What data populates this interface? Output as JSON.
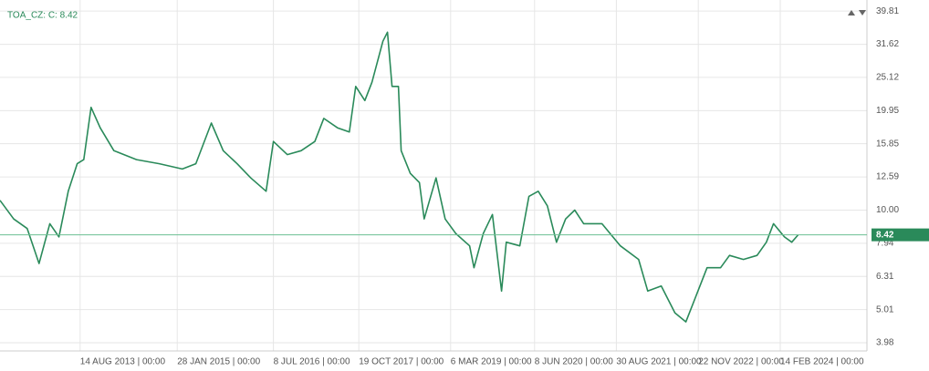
{
  "chart_data": {
    "type": "line",
    "title": "TOA_CZ: C: 8.42",
    "last_value": 8.42,
    "log_scale": true,
    "grid": true,
    "xlim": [
      "2012-06-01",
      "2025-06-03"
    ],
    "ylim": [
      3.76,
      43
    ],
    "yticks": [
      3.98,
      5.01,
      6.31,
      7.94,
      {
        "value": 10,
        "label": "10.00"
      },
      12.59,
      15.85,
      19.95,
      25.12,
      31.62,
      39.81
    ],
    "xticks": [
      {
        "value": "2013-08-14",
        "label": "14 AUG 2013 | 00:00"
      },
      {
        "value": "2015-01-28",
        "label": "28 JAN 2015 | 00:00"
      },
      {
        "value": "2016-07-08",
        "label": "8 JUL 2016 | 00:00"
      },
      {
        "value": "2017-10-19",
        "label": "19 OCT 2017 | 00:00"
      },
      {
        "value": "2019-03-06",
        "label": "6 MAR 2019 | 00:00"
      },
      {
        "value": "2020-06-08",
        "label": "8 JUN 2020 | 00:00"
      },
      {
        "value": "2021-08-30",
        "label": "30 AUG 2021 | 00:00"
      },
      {
        "value": "2022-11-22",
        "label": "22 NOV 2022 | 00:00"
      },
      {
        "value": "2024-02-14",
        "label": "14 FEB 2024 | 00:00"
      }
    ],
    "x": [
      "2012-06-01",
      "2012-08-15",
      "2012-10-28",
      "2013-01-01",
      "2013-03-01",
      "2013-04-20",
      "2013-06-10",
      "2013-07-29",
      "2013-09-03",
      "2013-10-13",
      "2013-12-02",
      "2014-02-15",
      "2014-06-19",
      "2014-10-22",
      "2015-02-25",
      "2015-05-10",
      "2015-08-03",
      "2015-10-07",
      "2015-12-22",
      "2016-03-06",
      "2016-05-29",
      "2016-07-08",
      "2016-09-22",
      "2016-12-07",
      "2017-02-20",
      "2017-04-10",
      "2017-06-24",
      "2017-08-28",
      "2017-10-02",
      "2017-11-21",
      "2017-12-30",
      "2018-02-28",
      "2018-03-25",
      "2018-04-19",
      "2018-05-24",
      "2018-06-08",
      "2018-07-28",
      "2018-09-16",
      "2018-10-12",
      "2018-12-16",
      "2019-02-04",
      "2019-04-03",
      "2019-06-18",
      "2019-07-12",
      "2019-09-01",
      "2019-10-21",
      "2019-12-10",
      "2020-01-05",
      "2020-03-19",
      "2020-05-08",
      "2020-06-28",
      "2020-08-17",
      "2020-10-06",
      "2020-11-25",
      "2021-01-14",
      "2021-03-04",
      "2021-06-12",
      "2021-09-21",
      "2021-12-30",
      "2022-02-18",
      "2022-05-03",
      "2022-07-17",
      "2022-09-15",
      "2022-11-20",
      "2023-01-09",
      "2023-03-24",
      "2023-05-12",
      "2023-07-27",
      "2023-10-10",
      "2023-11-30",
      "2024-01-08",
      "2024-03-08",
      "2024-04-17",
      "2024-05-22"
    ],
    "series": [
      {
        "name": "TOA_CZ",
        "color": "#2a8a5a",
        "values": [
          10.7,
          9.4,
          8.8,
          6.9,
          9.1,
          8.3,
          11.4,
          13.8,
          14.2,
          20.4,
          17.7,
          15.1,
          14.2,
          13.8,
          13.3,
          13.8,
          18.3,
          15.1,
          13.8,
          12.5,
          11.4,
          16.1,
          14.7,
          15.1,
          16.1,
          18.9,
          17.7,
          17.2,
          23.6,
          21.4,
          24.3,
          32.3,
          34.4,
          23.6,
          23.6,
          15.1,
          12.9,
          12.1,
          9.4,
          12.5,
          9.4,
          8.5,
          7.8,
          6.7,
          8.5,
          9.7,
          5.7,
          8.0,
          7.8,
          11.0,
          11.4,
          10.3,
          8.0,
          9.4,
          10.0,
          9.1,
          9.1,
          7.8,
          7.1,
          5.7,
          5.9,
          4.9,
          4.6,
          5.7,
          6.7,
          6.7,
          7.3,
          7.1,
          7.3,
          8.0,
          9.1,
          8.3,
          8.0,
          8.42
        ]
      }
    ]
  }
}
